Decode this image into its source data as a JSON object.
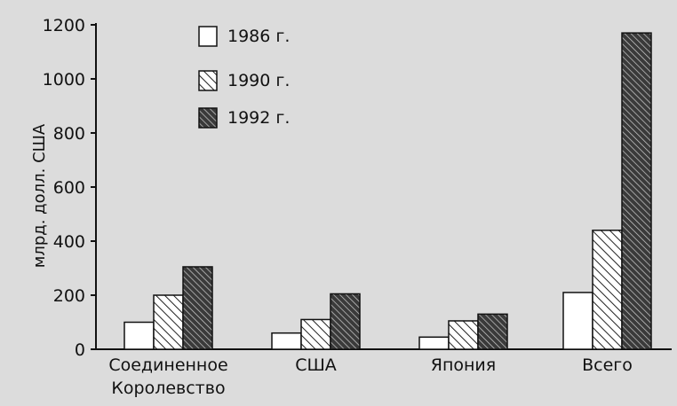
{
  "chart_data": {
    "type": "bar",
    "ylabel": "млрд. долл. США",
    "ylim": [
      0,
      1200
    ],
    "yticks": [
      0,
      200,
      400,
      600,
      800,
      1000,
      1200
    ],
    "categories": [
      [
        "Соединенное",
        "Королевство"
      ],
      [
        "США"
      ],
      [
        "Япония"
      ],
      [
        "Всего"
      ]
    ],
    "series": [
      {
        "name": "1986 г.",
        "pattern": "white",
        "values": [
          100,
          60,
          45,
          210
        ]
      },
      {
        "name": "1990 г.",
        "pattern": "light-hatch",
        "values": [
          200,
          110,
          105,
          440
        ]
      },
      {
        "name": "1992 г.",
        "pattern": "dark-hatch",
        "values": [
          305,
          205,
          130,
          1170
        ]
      }
    ],
    "legend_position": "top-left",
    "grid": false
  }
}
